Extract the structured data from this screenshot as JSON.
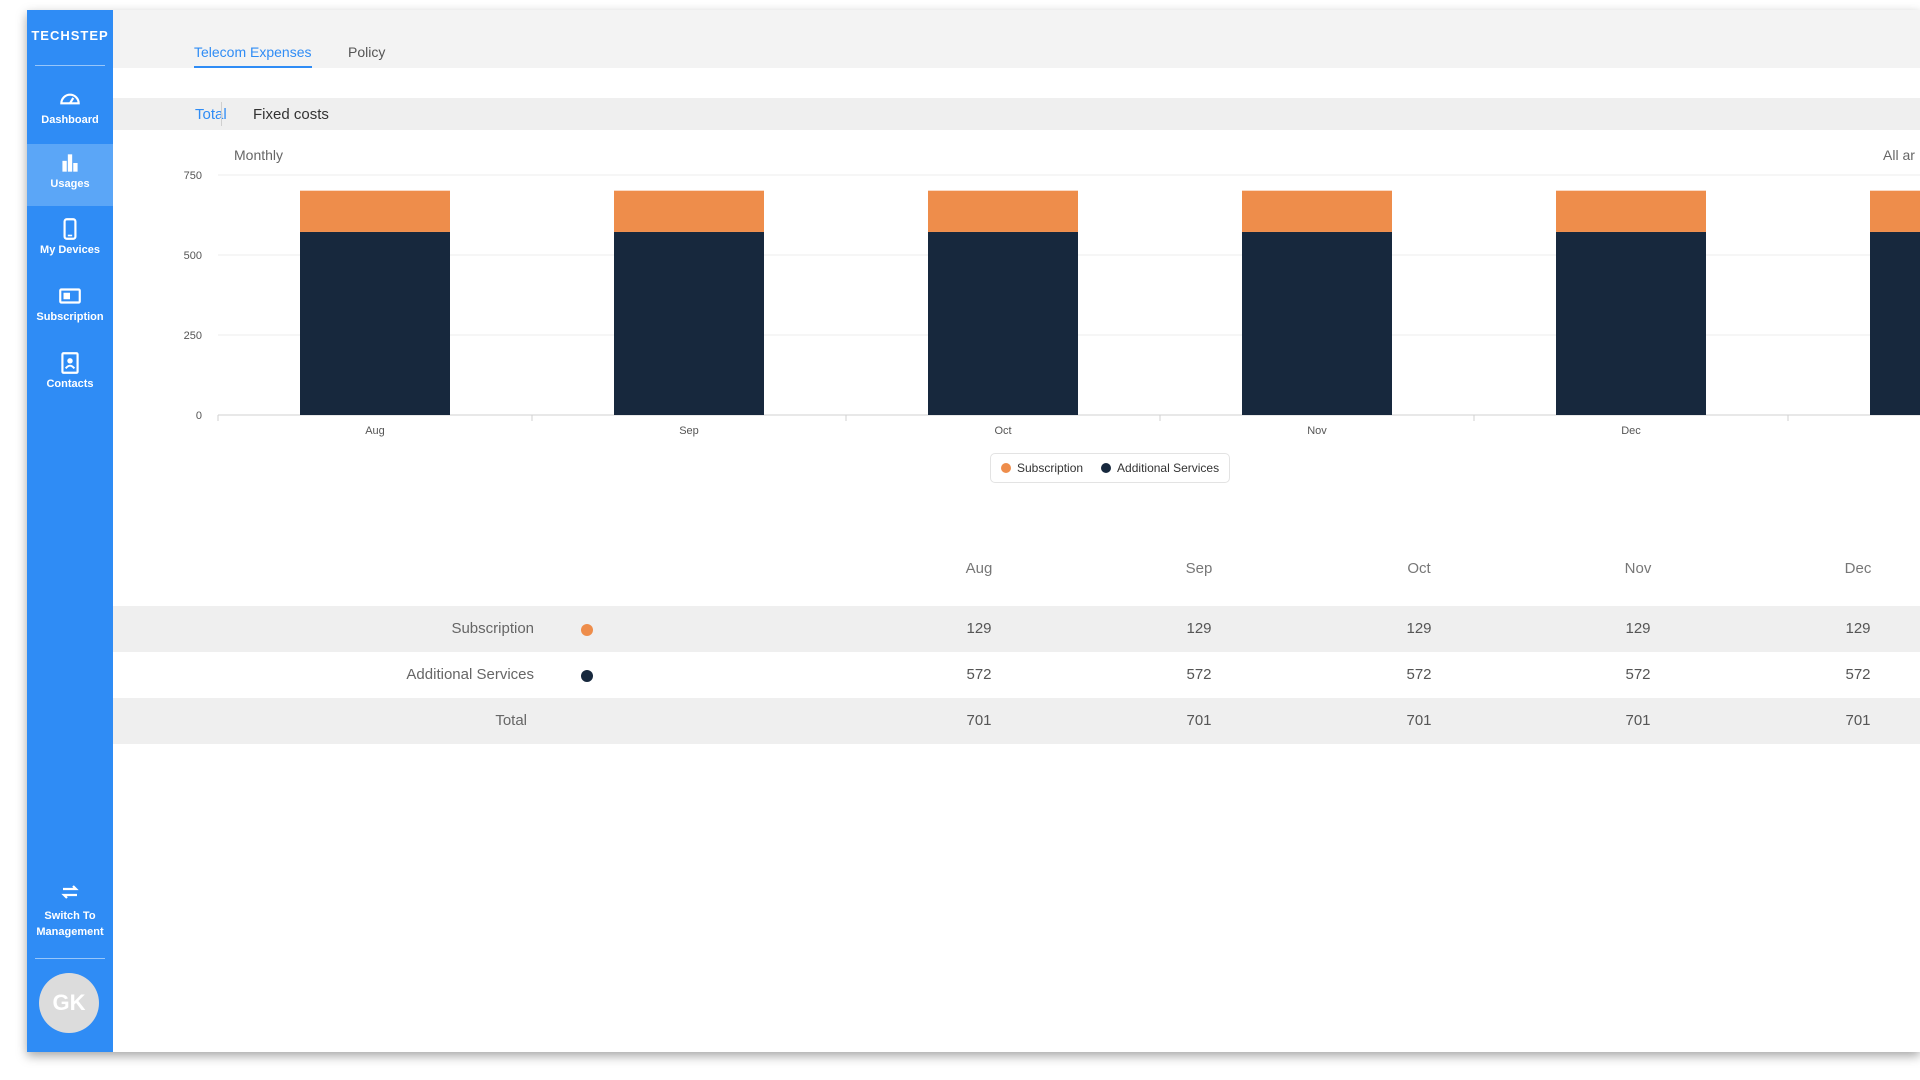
{
  "app": {
    "logo": "TECHSTEP"
  },
  "sidebar": {
    "items": [
      {
        "label": "Dashboard",
        "icon": "dashboard-gauge-icon",
        "active": false
      },
      {
        "label": "Usages",
        "icon": "bar-chart-icon",
        "active": true
      },
      {
        "label": "My Devices",
        "icon": "mobile-device-icon",
        "active": false
      },
      {
        "label": "Subscription",
        "icon": "sim-card-icon",
        "active": false
      },
      {
        "label": "Contacts",
        "icon": "contact-card-icon",
        "active": false
      }
    ],
    "switch_label_line1": "Switch To",
    "switch_label_line2": "Management",
    "avatar_initials": "GK"
  },
  "tabs": [
    {
      "label": "Telecom Expenses",
      "active": true
    },
    {
      "label": "Policy",
      "active": false
    }
  ],
  "subtabs": [
    {
      "label": "Total",
      "active": true
    },
    {
      "label": "Fixed costs",
      "active": false
    }
  ],
  "chart_header": {
    "period": "Monthly",
    "filter": "All ar"
  },
  "colors": {
    "sidebar": "#2f8cf5",
    "accent": "#2f8cf5",
    "subscription": "#ee8d4b",
    "additional_services": "#17283d"
  },
  "chart_data": {
    "type": "bar",
    "stacked": true,
    "categories": [
      "Aug",
      "Sep",
      "Oct",
      "Nov",
      "Dec",
      ""
    ],
    "series": [
      {
        "name": "Additional Services",
        "values": [
          572,
          572,
          572,
          572,
          572,
          572
        ],
        "color": "#17283d"
      },
      {
        "name": "Subscription",
        "values": [
          129,
          129,
          129,
          129,
          129,
          129
        ],
        "color": "#ee8d4b"
      }
    ],
    "yticks": [
      0,
      250,
      500,
      750
    ],
    "ylim": [
      0,
      750
    ],
    "grid": true,
    "legend_position": "bottom-center",
    "legend": [
      "Subscription",
      "Additional Services"
    ]
  },
  "table": {
    "columns": [
      "Aug",
      "Sep",
      "Oct",
      "Nov",
      "Dec"
    ],
    "rows": [
      {
        "label": "Subscription",
        "dot": "#ee8d4b",
        "values": [
          "129",
          "129",
          "129",
          "129",
          "129"
        ]
      },
      {
        "label": "Additional Services",
        "dot": "#17283d",
        "values": [
          "572",
          "572",
          "572",
          "572",
          "572"
        ]
      },
      {
        "label": "Total",
        "values": [
          "701",
          "701",
          "701",
          "701",
          "701"
        ]
      }
    ]
  }
}
